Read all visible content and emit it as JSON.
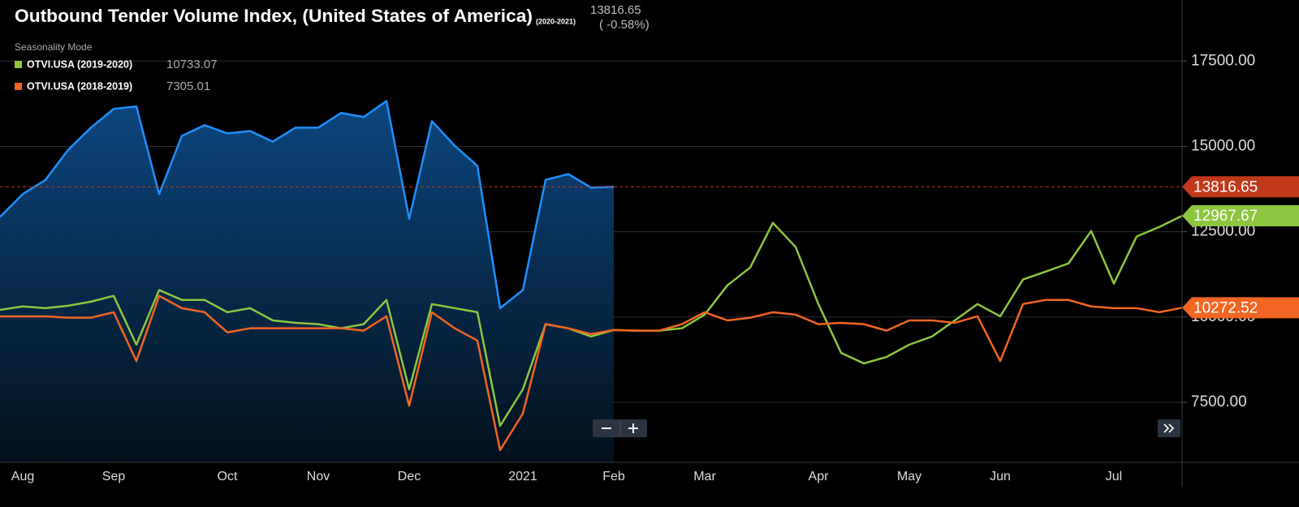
{
  "chart_data": {
    "type": "line",
    "title": "Outbound Tender Volume Index, (United States of America)",
    "subtitle": "(2020-2021)",
    "change": "( -0.58%)",
    "mode": "Seasonality Mode",
    "categories": [
      null,
      "Aug",
      null,
      null,
      null,
      "Sep",
      null,
      null,
      null,
      null,
      "Oct",
      null,
      null,
      null,
      "Nov",
      null,
      null,
      null,
      "Dec",
      null,
      null,
      null,
      null,
      "2021",
      null,
      null,
      null,
      "Feb",
      null,
      null,
      null,
      "Mar",
      null,
      null,
      null,
      null,
      "Apr",
      null,
      null,
      null,
      "May",
      null,
      null,
      null,
      "Jun",
      null,
      null,
      null,
      null,
      "Jul",
      null,
      null,
      null
    ],
    "series": [
      {
        "color": "#1e90ff",
        "fill": true,
        "values": [
          12930,
          13600,
          14020,
          14900,
          15550,
          16100,
          16170,
          13600,
          15310,
          15620,
          15380,
          15450,
          15140,
          15550,
          15550,
          15980,
          15860,
          16330,
          12880,
          15740,
          15020,
          14430,
          10260,
          10790,
          14020,
          14190,
          13790,
          13816.65,
          null,
          null,
          null,
          null,
          null,
          null,
          null,
          null,
          null,
          null,
          null,
          null,
          null,
          null,
          null,
          null,
          null,
          null,
          null,
          null,
          null,
          null,
          null,
          null,
          null
        ]
      },
      {
        "name": "OTVI.USA (2019-2020)",
        "color": "#8dc63f",
        "readout": "10733.07",
        "values": [
          10210,
          10310,
          10260,
          10330,
          10450,
          10620,
          9190,
          10790,
          10500,
          10500,
          10140,
          10260,
          9900,
          9830,
          9790,
          9670,
          9790,
          10500,
          7880,
          10380,
          10260,
          10140,
          6810,
          7880,
          9790,
          9670,
          9430,
          9620,
          9600,
          9600,
          9670,
          10070,
          10930,
          11450,
          12760,
          12050,
          10380,
          8950,
          8640,
          8830,
          9190,
          9430,
          9900,
          10380,
          10020,
          11100,
          11330,
          11570,
          12520,
          10980,
          12360,
          12640,
          12967.67
        ]
      },
      {
        "name": "OTVI.USA (2018-2019)",
        "color": "#f26522",
        "readout": "7305.01",
        "values": [
          10020,
          10020,
          10020,
          9980,
          9980,
          10140,
          8710,
          10620,
          10260,
          10140,
          9550,
          9670,
          9670,
          9670,
          9670,
          9670,
          9600,
          10020,
          7400,
          10140,
          9670,
          9310,
          6100,
          7170,
          9790,
          9670,
          9500,
          9620,
          9600,
          9600,
          9790,
          10140,
          9900,
          9980,
          10140,
          10070,
          9790,
          9830,
          9790,
          9600,
          9900,
          9900,
          9830,
          10020,
          8710,
          10380,
          10500,
          10500,
          10310,
          10260,
          10260,
          10140,
          10272.52
        ]
      }
    ],
    "tag_colors": [
      "#c0391b",
      "#8dc63f",
      "#f26522"
    ],
    "ylim": [
      5740,
      19290
    ],
    "yticks": [
      {
        "value": 7500,
        "label": "7500.00"
      },
      {
        "value": 10000,
        "label": "10000.00"
      },
      {
        "value": 12500,
        "label": "12500.00"
      },
      {
        "value": 15000,
        "label": "15000.00"
      },
      {
        "value": 17500,
        "label": "17500.00"
      }
    ],
    "grid": true
  }
}
